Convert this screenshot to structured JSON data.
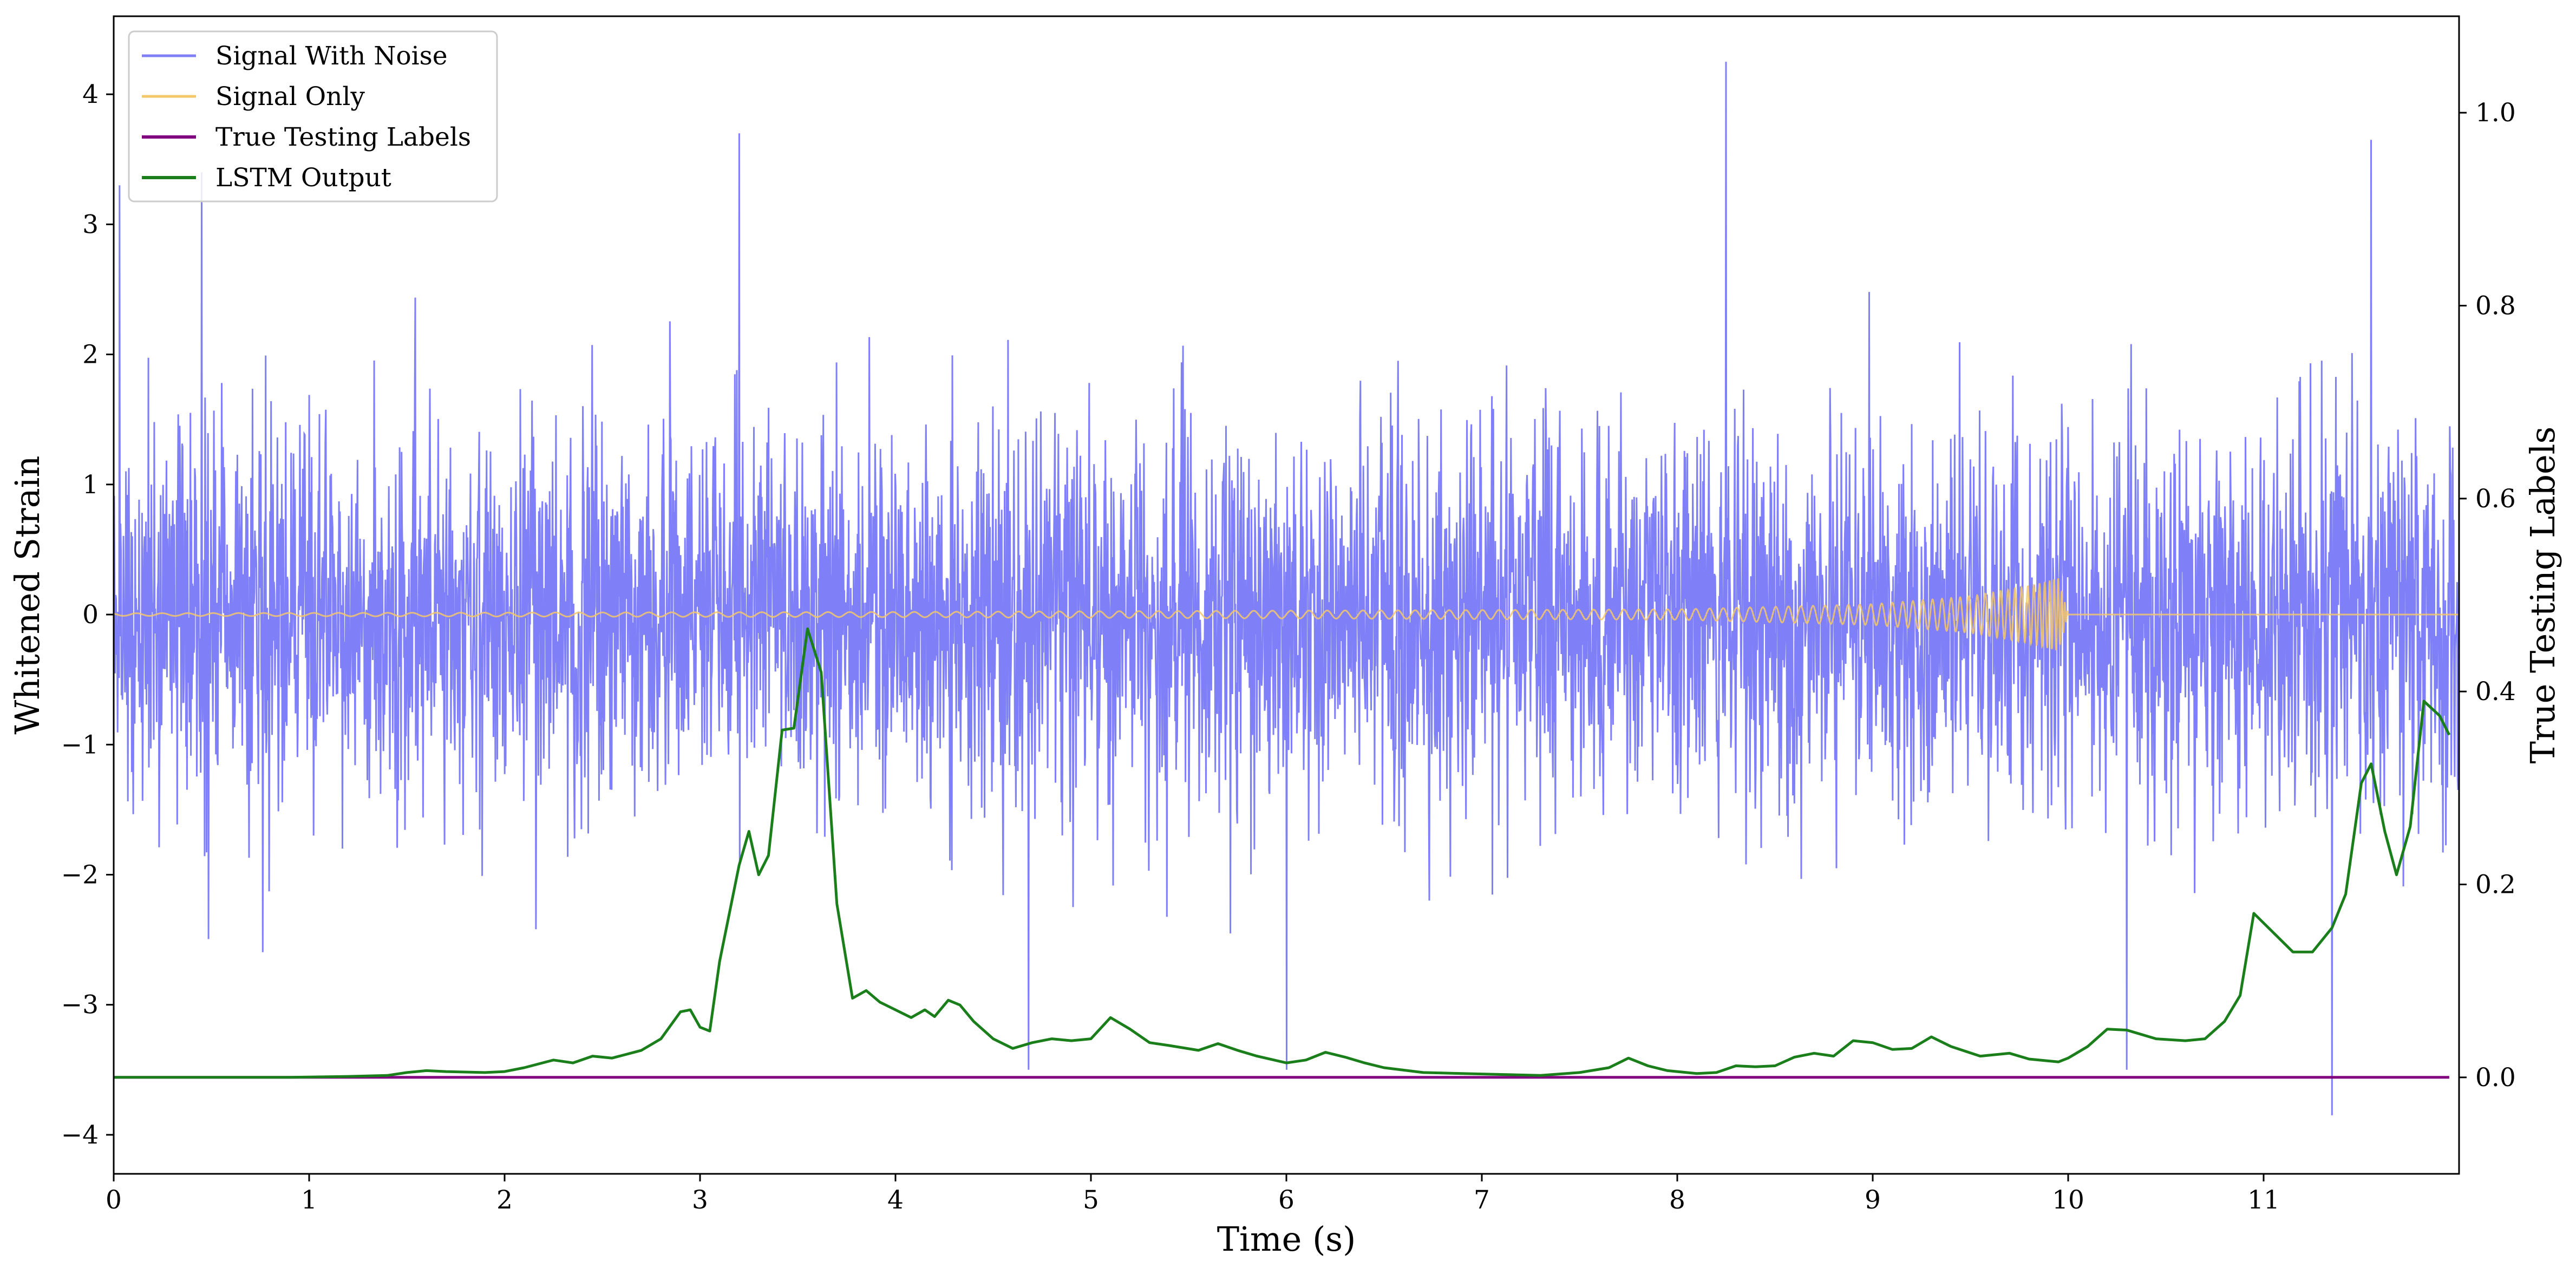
{
  "chart_data": {
    "type": "line",
    "xlabel": "Time (s)",
    "ylabel_left": "Whitened Strain",
    "ylabel_right": "True Testing Labels",
    "xlim": [
      0,
      12
    ],
    "ylim_left": [
      -4.3,
      4.6
    ],
    "ylim_right": [
      -0.1,
      1.1
    ],
    "x_ticks": [
      "0",
      "1",
      "2",
      "3",
      "4",
      "5",
      "6",
      "7",
      "8",
      "9",
      "10",
      "11"
    ],
    "y_left_ticks": [
      "−4",
      "−3",
      "−2",
      "−1",
      "0",
      "1",
      "2",
      "3",
      "4"
    ],
    "y_right_ticks": [
      "0.0",
      "0.2",
      "0.4",
      "0.6",
      "0.8",
      "1.0"
    ],
    "grid": false,
    "legend_position": "top-left",
    "series": [
      {
        "name": "Signal With Noise",
        "axis": "left",
        "color": "#7f7ff7",
        "description_values": {
          "typical_range": [
            -2.0,
            2.0
          ],
          "notable_peaks": [
            {
              "x": 0.03,
              "y": 3.3
            },
            {
              "x": 0.45,
              "y": 3.4
            },
            {
              "x": 3.2,
              "y": 3.7
            },
            {
              "x": 8.25,
              "y": 4.25
            },
            {
              "x": 11.55,
              "y": 3.65
            },
            {
              "x": 6.0,
              "y": -3.5
            },
            {
              "x": 11.35,
              "y": -3.85
            },
            {
              "x": 4.68,
              "y": -3.5
            },
            {
              "x": 10.3,
              "y": -3.5
            }
          ]
        }
      },
      {
        "name": "Signal Only",
        "axis": "left",
        "color": "#f5c76a",
        "chirp": {
          "start_x": 0.0,
          "merger_x": 9.95,
          "end_x": 12.0,
          "amplitude_at": [
            {
              "x": 0,
              "y": 0.01
            },
            {
              "x": 2,
              "y": 0.015
            },
            {
              "x": 4,
              "y": 0.02
            },
            {
              "x": 6,
              "y": 0.03
            },
            {
              "x": 8,
              "y": 0.04
            },
            {
              "x": 9,
              "y": 0.08
            },
            {
              "x": 9.5,
              "y": 0.14
            },
            {
              "x": 9.8,
              "y": 0.22
            },
            {
              "x": 9.95,
              "y": 0.28
            },
            {
              "x": 10.0,
              "y": 0.0
            },
            {
              "x": 12.0,
              "y": 0.0
            }
          ]
        }
      },
      {
        "name": "True Testing Labels",
        "axis": "right",
        "color": "#800080",
        "x": [
          0,
          11.95
        ],
        "y": [
          0.0,
          0.0
        ]
      },
      {
        "name": "LSTM Output",
        "axis": "right",
        "color": "#1a7f1a",
        "x": [
          0.0,
          0.5,
          0.9,
          1.2,
          1.4,
          1.5,
          1.6,
          1.7,
          1.9,
          2.0,
          2.1,
          2.25,
          2.35,
          2.45,
          2.55,
          2.7,
          2.8,
          2.9,
          2.95,
          3.0,
          3.05,
          3.1,
          3.2,
          3.25,
          3.3,
          3.35,
          3.42,
          3.48,
          3.55,
          3.62,
          3.7,
          3.78,
          3.85,
          3.92,
          4.0,
          4.08,
          4.15,
          4.2,
          4.27,
          4.33,
          4.4,
          4.5,
          4.6,
          4.7,
          4.8,
          4.9,
          5.0,
          5.1,
          5.2,
          5.3,
          5.4,
          5.55,
          5.65,
          5.75,
          5.85,
          6.0,
          6.1,
          6.2,
          6.3,
          6.4,
          6.5,
          6.7,
          6.9,
          7.1,
          7.3,
          7.5,
          7.65,
          7.75,
          7.85,
          7.95,
          8.1,
          8.2,
          8.3,
          8.4,
          8.5,
          8.6,
          8.7,
          8.8,
          8.9,
          9.0,
          9.1,
          9.2,
          9.3,
          9.4,
          9.55,
          9.7,
          9.8,
          9.95,
          10.0,
          10.1,
          10.2,
          10.3,
          10.45,
          10.6,
          10.7,
          10.8,
          10.88,
          10.95,
          11.05,
          11.15,
          11.25,
          11.35,
          11.42,
          11.5,
          11.55,
          11.62,
          11.68,
          11.75,
          11.82,
          11.9,
          11.95
        ],
        "y": [
          0.0,
          0.0,
          0.0,
          0.001,
          0.002,
          0.005,
          0.007,
          0.006,
          0.005,
          0.006,
          0.01,
          0.018,
          0.015,
          0.022,
          0.02,
          0.028,
          0.04,
          0.068,
          0.07,
          0.052,
          0.048,
          0.12,
          0.22,
          0.255,
          0.21,
          0.23,
          0.36,
          0.362,
          0.465,
          0.42,
          0.18,
          0.082,
          0.09,
          0.078,
          0.07,
          0.062,
          0.07,
          0.063,
          0.08,
          0.075,
          0.058,
          0.04,
          0.03,
          0.036,
          0.04,
          0.038,
          0.04,
          0.062,
          0.05,
          0.036,
          0.033,
          0.028,
          0.035,
          0.028,
          0.022,
          0.015,
          0.018,
          0.026,
          0.021,
          0.015,
          0.01,
          0.005,
          0.004,
          0.003,
          0.002,
          0.005,
          0.01,
          0.02,
          0.012,
          0.007,
          0.004,
          0.005,
          0.012,
          0.011,
          0.012,
          0.021,
          0.025,
          0.022,
          0.038,
          0.036,
          0.029,
          0.03,
          0.042,
          0.032,
          0.022,
          0.025,
          0.019,
          0.016,
          0.02,
          0.032,
          0.05,
          0.049,
          0.04,
          0.038,
          0.04,
          0.058,
          0.085,
          0.17,
          0.15,
          0.13,
          0.13,
          0.155,
          0.19,
          0.305,
          0.325,
          0.255,
          0.21,
          0.26,
          0.39,
          0.375,
          0.355
        ]
      }
    ]
  }
}
